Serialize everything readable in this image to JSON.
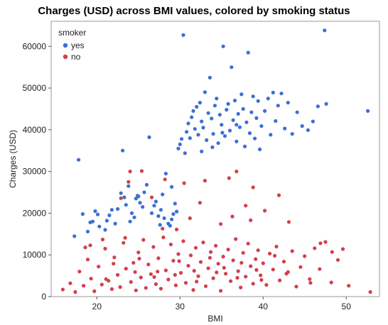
{
  "chart_data": {
    "type": "scatter",
    "title": "Charges (USD) across BMI values, colored by smoking status",
    "xlabel": "BMI",
    "ylabel": "Charges (USD)",
    "xlim": [
      14.5,
      54
    ],
    "ylim": [
      0,
      66000
    ],
    "x_ticks": [
      "20",
      "30",
      "40",
      "50"
    ],
    "y_ticks": [
      "0",
      "10000",
      "20000",
      "30000",
      "40000",
      "50000",
      "60000"
    ],
    "grid": false,
    "legend": {
      "title": "smoker",
      "position": "top-left"
    },
    "series": [
      {
        "name": "yes",
        "color": "#3b6fd4",
        "points": [
          [
            17.8,
            32800
          ],
          [
            17.3,
            14500
          ],
          [
            18.3,
            19800
          ],
          [
            18.9,
            15600
          ],
          [
            19.2,
            17800
          ],
          [
            19.8,
            20500
          ],
          [
            19.5,
            18000
          ],
          [
            20.1,
            19700
          ],
          [
            20.3,
            16800
          ],
          [
            21.0,
            16000
          ],
          [
            21.5,
            19500
          ],
          [
            21.8,
            20800
          ],
          [
            22.2,
            17500
          ],
          [
            22.5,
            21000
          ],
          [
            22.9,
            24800
          ],
          [
            23.1,
            35000
          ],
          [
            23.3,
            23800
          ],
          [
            23.5,
            22000
          ],
          [
            23.8,
            26500
          ],
          [
            24.0,
            18000
          ],
          [
            24.2,
            20000
          ],
          [
            24.5,
            19000
          ],
          [
            24.7,
            23500
          ],
          [
            25.0,
            24000
          ],
          [
            25.2,
            22500
          ],
          [
            25.5,
            21500
          ],
          [
            25.7,
            25000
          ],
          [
            26.0,
            26800
          ],
          [
            26.3,
            38200
          ],
          [
            26.6,
            20000
          ],
          [
            26.9,
            21800
          ],
          [
            27.1,
            22800
          ],
          [
            27.4,
            19300
          ],
          [
            27.6,
            17200
          ],
          [
            27.9,
            24500
          ],
          [
            28.1,
            18800
          ],
          [
            28.3,
            29500
          ],
          [
            28.6,
            17500
          ],
          [
            28.8,
            17000
          ],
          [
            29.0,
            18500
          ],
          [
            29.2,
            19800
          ],
          [
            29.4,
            22300
          ],
          [
            29.6,
            20400
          ],
          [
            29.8,
            35500
          ],
          [
            30.0,
            36500
          ],
          [
            30.2,
            37800
          ],
          [
            30.4,
            62700
          ],
          [
            30.6,
            34400
          ],
          [
            30.8,
            39500
          ],
          [
            31.0,
            41500
          ],
          [
            31.2,
            38000
          ],
          [
            31.4,
            43000
          ],
          [
            31.6,
            44500
          ],
          [
            31.8,
            40200
          ],
          [
            32.0,
            45500
          ],
          [
            32.2,
            38800
          ],
          [
            32.4,
            46500
          ],
          [
            32.6,
            42000
          ],
          [
            32.8,
            40500
          ],
          [
            33.0,
            49000
          ],
          [
            33.2,
            37500
          ],
          [
            33.4,
            44000
          ],
          [
            33.6,
            52500
          ],
          [
            33.8,
            42700
          ],
          [
            34.0,
            39000
          ],
          [
            34.2,
            45800
          ],
          [
            34.4,
            47500
          ],
          [
            34.6,
            36800
          ],
          [
            34.8,
            43600
          ],
          [
            35.0,
            41200
          ],
          [
            35.2,
            60000
          ],
          [
            35.4,
            38500
          ],
          [
            35.6,
            44800
          ],
          [
            35.8,
            46200
          ],
          [
            36.0,
            39800
          ],
          [
            36.2,
            55000
          ],
          [
            36.4,
            42300
          ],
          [
            36.6,
            47000
          ],
          [
            36.8,
            37200
          ],
          [
            37.0,
            43800
          ],
          [
            37.2,
            40600
          ],
          [
            37.4,
            48500
          ],
          [
            37.6,
            45000
          ],
          [
            37.8,
            36000
          ],
          [
            38.0,
            41800
          ],
          [
            38.2,
            58500
          ],
          [
            38.4,
            39200
          ],
          [
            38.6,
            44200
          ],
          [
            38.8,
            48000
          ],
          [
            39.0,
            37900
          ],
          [
            39.2,
            42800
          ],
          [
            39.4,
            46900
          ],
          [
            39.6,
            35300
          ],
          [
            39.8,
            40900
          ],
          [
            40.2,
            44500
          ],
          [
            40.6,
            47500
          ],
          [
            40.9,
            38800
          ],
          [
            41.2,
            48900
          ],
          [
            41.5,
            42100
          ],
          [
            41.8,
            45800
          ],
          [
            42.2,
            48700
          ],
          [
            42.6,
            40300
          ],
          [
            43.0,
            46500
          ],
          [
            43.5,
            39000
          ],
          [
            44.1,
            44200
          ],
          [
            44.7,
            40900
          ],
          [
            45.4,
            39900
          ],
          [
            46.0,
            42000
          ],
          [
            46.6,
            45600
          ],
          [
            47.4,
            63800
          ],
          [
            47.6,
            46200
          ],
          [
            52.6,
            44500
          ],
          [
            27.7,
            20800
          ],
          [
            29.0,
            26300
          ],
          [
            24.9,
            24200
          ],
          [
            21.2,
            18200
          ],
          [
            32.6,
            34800
          ],
          [
            33.9,
            35800
          ],
          [
            35.1,
            39300
          ],
          [
            36.8,
            41200
          ]
        ]
      },
      {
        "name": "no",
        "color": "#d2404a",
        "points": [
          [
            15.9,
            1700
          ],
          [
            16.8,
            3200
          ],
          [
            17.4,
            1100
          ],
          [
            17.9,
            6000
          ],
          [
            18.4,
            2600
          ],
          [
            18.9,
            8900
          ],
          [
            19.3,
            4300
          ],
          [
            19.7,
            1300
          ],
          [
            20.2,
            7200
          ],
          [
            20.6,
            2900
          ],
          [
            21.0,
            11500
          ],
          [
            21.4,
            3800
          ],
          [
            21.8,
            1800
          ],
          [
            22.1,
            9400
          ],
          [
            22.5,
            5200
          ],
          [
            22.8,
            2300
          ],
          [
            23.2,
            12900
          ],
          [
            23.5,
            6700
          ],
          [
            23.8,
            27500
          ],
          [
            24.1,
            3500
          ],
          [
            24.4,
            8100
          ],
          [
            24.7,
            1500
          ],
          [
            25.0,
            10600
          ],
          [
            25.3,
            4600
          ],
          [
            25.6,
            13600
          ],
          [
            25.9,
            2100
          ],
          [
            26.2,
            7700
          ],
          [
            26.5,
            5400
          ],
          [
            26.8,
            11900
          ],
          [
            27.1,
            3000
          ],
          [
            27.4,
            9200
          ],
          [
            27.7,
            1900
          ],
          [
            28.0,
            14200
          ],
          [
            28.3,
            6300
          ],
          [
            28.6,
            4100
          ],
          [
            28.9,
            12500
          ],
          [
            29.2,
            8600
          ],
          [
            29.5,
            2700
          ],
          [
            29.8,
            10200
          ],
          [
            30.1,
            5700
          ],
          [
            30.4,
            13300
          ],
          [
            30.7,
            3300
          ],
          [
            31.0,
            7400
          ],
          [
            31.3,
            9900
          ],
          [
            31.6,
            1600
          ],
          [
            31.9,
            11700
          ],
          [
            32.2,
            4900
          ],
          [
            32.5,
            8300
          ],
          [
            32.8,
            13000
          ],
          [
            33.1,
            2500
          ],
          [
            33.4,
            6800
          ],
          [
            33.7,
            10700
          ],
          [
            34.0,
            4400
          ],
          [
            34.3,
            12200
          ],
          [
            34.6,
            7900
          ],
          [
            34.9,
            1400
          ],
          [
            35.2,
            9600
          ],
          [
            35.5,
            5500
          ],
          [
            35.8,
            11300
          ],
          [
            36.1,
            3700
          ],
          [
            36.4,
            8700
          ],
          [
            36.7,
            13800
          ],
          [
            37.0,
            6100
          ],
          [
            37.3,
            2200
          ],
          [
            37.6,
            10500
          ],
          [
            37.9,
            4800
          ],
          [
            38.2,
            12700
          ],
          [
            38.5,
            7300
          ],
          [
            38.8,
            3100
          ],
          [
            39.1,
            9000
          ],
          [
            39.4,
            11100
          ],
          [
            39.7,
            5100
          ],
          [
            40.0,
            8000
          ],
          [
            40.4,
            2800
          ],
          [
            40.8,
            10300
          ],
          [
            41.2,
            6500
          ],
          [
            41.6,
            12000
          ],
          [
            42.0,
            3900
          ],
          [
            42.5,
            8400
          ],
          [
            43.0,
            5900
          ],
          [
            43.5,
            10900
          ],
          [
            44.0,
            2400
          ],
          [
            44.5,
            7100
          ],
          [
            45.0,
            9700
          ],
          [
            45.6,
            4200
          ],
          [
            46.2,
            11600
          ],
          [
            46.8,
            6600
          ],
          [
            47.5,
            13100
          ],
          [
            48.2,
            3400
          ],
          [
            49.0,
            8800
          ],
          [
            49.6,
            11400
          ],
          [
            50.3,
            2600
          ],
          [
            52.9,
            1100
          ],
          [
            24.0,
            30000
          ],
          [
            25.4,
            30100
          ],
          [
            28.2,
            28100
          ],
          [
            30.5,
            27200
          ],
          [
            33.0,
            27800
          ],
          [
            35.9,
            28400
          ],
          [
            36.8,
            30000
          ],
          [
            38.8,
            26200
          ],
          [
            41.9,
            24300
          ],
          [
            22.9,
            23600
          ],
          [
            26.6,
            23800
          ],
          [
            32.4,
            22500
          ],
          [
            36.3,
            19200
          ],
          [
            37.9,
            21800
          ],
          [
            40.2,
            20600
          ],
          [
            29.6,
            16100
          ],
          [
            34.9,
            17400
          ],
          [
            38.5,
            18300
          ],
          [
            43.1,
            17900
          ],
          [
            27.9,
            16300
          ],
          [
            31.2,
            18800
          ],
          [
            23.4,
            14100
          ],
          [
            20.7,
            13700
          ],
          [
            19.2,
            12300
          ],
          [
            18.6,
            11800
          ],
          [
            46.9,
            12800
          ],
          [
            48.3,
            10700
          ],
          [
            22.0,
            7900
          ],
          [
            25.1,
            9100
          ],
          [
            27.3,
            6000
          ],
          [
            29.9,
            8500
          ],
          [
            31.7,
            6200
          ],
          [
            33.6,
            9300
          ],
          [
            35.3,
            6900
          ],
          [
            37.4,
            8100
          ],
          [
            39.2,
            6400
          ],
          [
            41.4,
            9800
          ],
          [
            21.1,
            4200
          ],
          [
            24.6,
            5900
          ],
          [
            26.9,
            4700
          ],
          [
            29.4,
            5200
          ],
          [
            32.0,
            3600
          ],
          [
            34.4,
            5800
          ],
          [
            36.9,
            4500
          ],
          [
            39.8,
            4000
          ],
          [
            42.8,
            5500
          ],
          [
            45.7,
            3300
          ]
        ]
      }
    ]
  }
}
